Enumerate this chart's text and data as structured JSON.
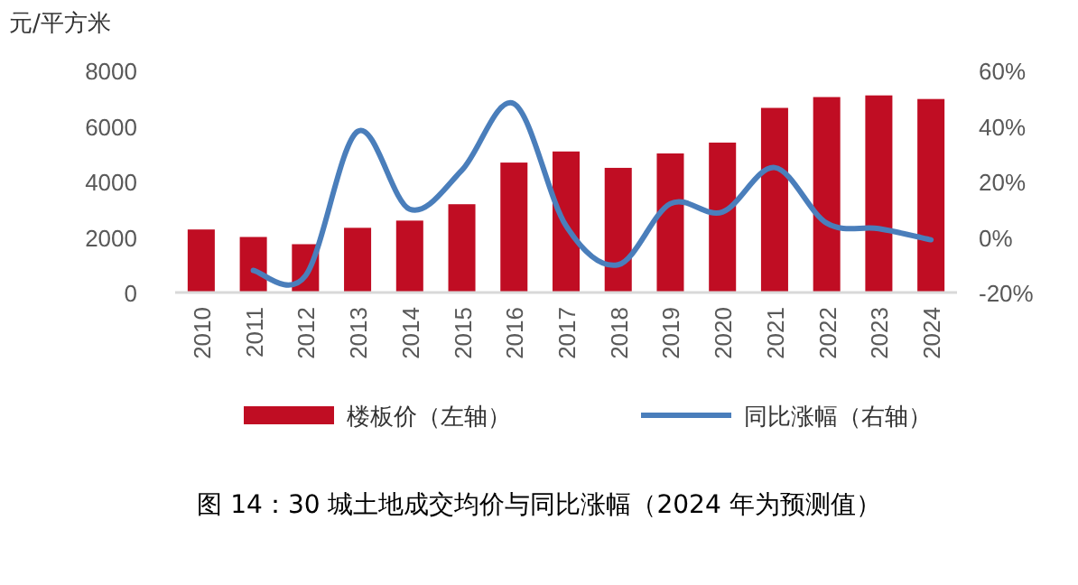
{
  "chart_data": {
    "type": "bar",
    "title": "图 14：30 城土地成交均价与同比涨幅（2024 年为预测值）",
    "ylabel": "元/平方米",
    "categories": [
      "2010",
      "2011",
      "2012",
      "2013",
      "2014",
      "2015",
      "2016",
      "2017",
      "2018",
      "2019",
      "2020",
      "2021",
      "2022",
      "2023",
      "2024"
    ],
    "series": [
      {
        "name": "楼板价（左轴）",
        "color": "#c00d23",
        "values": [
          2270,
          2000,
          1740,
          2330,
          2590,
          3180,
          4680,
          5080,
          4490,
          5010,
          5400,
          6650,
          7040,
          7100,
          6970
        ]
      },
      {
        "name": "同比涨幅（右轴）",
        "type": "line",
        "axis": "y2",
        "color": "#4a7ebb",
        "values": [
          null,
          -12,
          -14,
          38,
          10,
          24,
          48,
          4,
          -10,
          12,
          9,
          25,
          5,
          3,
          -1
        ]
      }
    ],
    "ylim": [
      0,
      8000
    ],
    "yticks": [
      0,
      2000,
      4000,
      6000,
      8000
    ],
    "y2lim": [
      -20,
      60
    ],
    "y2ticks": [
      {
        "value": -20,
        "label": "-20%"
      },
      {
        "value": 0,
        "label": "0%"
      },
      {
        "value": 20,
        "label": "20%"
      },
      {
        "value": 40,
        "label": "40%"
      },
      {
        "value": 60,
        "label": "60%"
      }
    ],
    "grid": false,
    "legend": "bottom",
    "line_style": "solid"
  }
}
